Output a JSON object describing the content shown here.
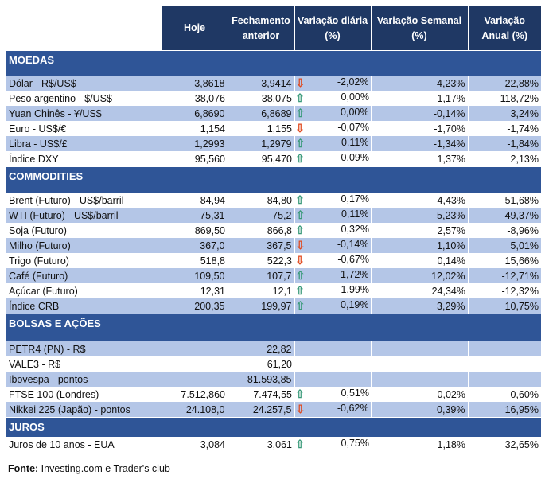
{
  "headers": [
    "",
    "Hoje",
    "Fechamento anterior",
    "Variação diária (%)",
    "Variação Semanal (%)",
    "Variação Anual (%)"
  ],
  "colors": {
    "header": "#1f3864",
    "section": "#2f5597",
    "shade": "#b4c6e7",
    "up": "#3a9a7a",
    "down": "#e04a1f"
  },
  "sections": [
    {
      "title": "MOEDAS",
      "rows": [
        [
          "Dólar - R$/US$",
          "3,8618",
          "3,9414",
          "down",
          "-2,02%",
          "-4,23%",
          "22,88%"
        ],
        [
          "Peso argentino - $/US$",
          "38,076",
          "38,075",
          "up",
          "0,00%",
          "-1,17%",
          "118,72%"
        ],
        [
          "Yuan Chinês - ¥/US$",
          "6,8690",
          "6,8689",
          "up",
          "0,00%",
          "-0,14%",
          "3,24%"
        ],
        [
          "Euro - US$/€",
          "1,154",
          "1,155",
          "down",
          "-0,07%",
          "-1,70%",
          "-1,74%"
        ],
        [
          "Libra - US$/£",
          "1,2993",
          "1,2979",
          "up",
          "0,11%",
          "-1,34%",
          "-1,84%"
        ],
        [
          "Índice DXY",
          "95,560",
          "95,470",
          "up",
          "0,09%",
          "1,37%",
          "2,13%"
        ]
      ]
    },
    {
      "title": "COMMODITIES",
      "rows": [
        [
          "Brent (Futuro) - US$/barril",
          "84,94",
          "84,80",
          "up",
          "0,17%",
          "4,43%",
          "51,68%"
        ],
        [
          "WTI (Futuro) - US$/barril",
          "75,31",
          "75,2",
          "up",
          "0,11%",
          "5,23%",
          "49,37%"
        ],
        [
          "Soja (Futuro)",
          "869,50",
          "866,8",
          "up",
          "0,32%",
          "2,57%",
          "-8,96%"
        ],
        [
          "Milho (Futuro)",
          "367,0",
          "367,5",
          "down",
          "-0,14%",
          "1,10%",
          "5,01%"
        ],
        [
          "Trigo (Futuro)",
          "518,8",
          "522,3",
          "down",
          "-0,67%",
          "0,14%",
          "15,66%"
        ],
        [
          "Café (Futuro)",
          "109,50",
          "107,7",
          "up",
          "1,72%",
          "12,02%",
          "-12,71%"
        ],
        [
          "Açúcar (Futuro)",
          "12,31",
          "12,1",
          "up",
          "1,99%",
          "24,34%",
          "-12,32%"
        ],
        [
          "Índice CRB",
          "200,35",
          "199,97",
          "up",
          "0,19%",
          "3,29%",
          "10,75%"
        ]
      ]
    },
    {
      "title": "BOLSAS E AÇÕES",
      "rows": [
        [
          "PETR4 (PN) - R$",
          "",
          "22,82",
          "",
          "",
          "",
          ""
        ],
        [
          "VALE3 - R$",
          "",
          "61,20",
          "",
          "",
          "",
          ""
        ],
        [
          "Ibovespa - pontos",
          "",
          "81.593,85",
          "",
          "",
          "",
          ""
        ],
        [
          "FTSE 100 (Londres)",
          "7.512,860",
          "7.474,55",
          "up",
          "0,51%",
          "0,02%",
          "0,60%"
        ],
        [
          "Nikkei 225 (Japão) - pontos",
          "24.108,0",
          "24.257,5",
          "down",
          "-0,62%",
          "0,39%",
          "16,95%"
        ]
      ]
    },
    {
      "title": "JUROS",
      "rows": [
        [
          "Juros de 10 anos - EUA",
          "3,084",
          "3,061",
          "up",
          "0,75%",
          "1,18%",
          "32,65%"
        ]
      ]
    }
  ],
  "source": {
    "label": "Fonte:",
    "text": " Investing.com e Trader's club"
  }
}
